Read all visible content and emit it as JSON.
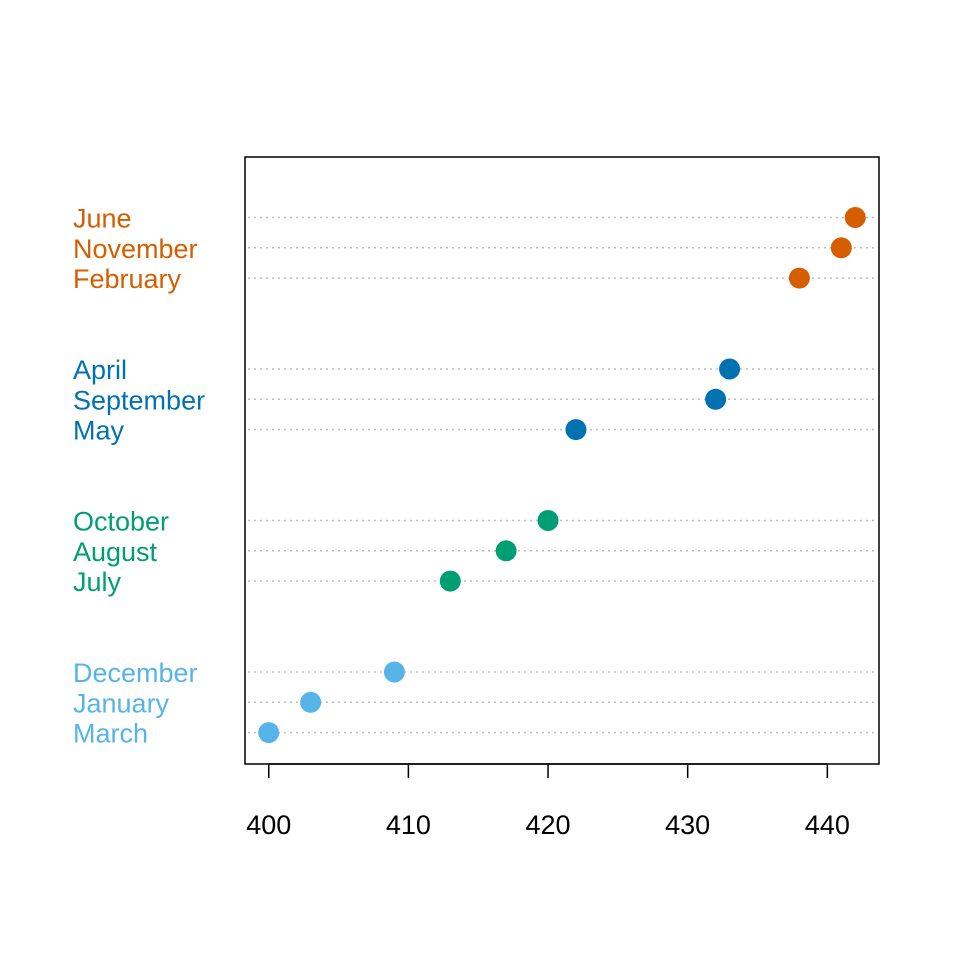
{
  "chart_data": {
    "type": "scatter",
    "subtype": "grouped-dotchart",
    "title": "",
    "xlabel": "",
    "ylabel": "",
    "xlim": [
      398.3,
      443.7
    ],
    "x_ticks": [
      400,
      410,
      420,
      430,
      440
    ],
    "x_tick_labels": [
      "400",
      "410",
      "420",
      "430",
      "440"
    ],
    "grid": "dotted horizontal guide lines",
    "groups": [
      {
        "color": "#D55E00",
        "items": [
          {
            "label": "June",
            "value": 442
          },
          {
            "label": "November",
            "value": 441
          },
          {
            "label": "February",
            "value": 438
          }
        ]
      },
      {
        "color": "#0072B2",
        "items": [
          {
            "label": "April",
            "value": 433
          },
          {
            "label": "September",
            "value": 432
          },
          {
            "label": "May",
            "value": 422
          }
        ]
      },
      {
        "color": "#009E73",
        "items": [
          {
            "label": "October",
            "value": 420
          },
          {
            "label": "August",
            "value": 417
          },
          {
            "label": "July",
            "value": 413
          }
        ]
      },
      {
        "color": "#56B4E9",
        "items": [
          {
            "label": "December",
            "value": 409
          },
          {
            "label": "January",
            "value": 403
          },
          {
            "label": "March",
            "value": 400
          }
        ]
      }
    ],
    "colors": {
      "grid": "#BEBEBE",
      "frame": "#000000"
    }
  }
}
